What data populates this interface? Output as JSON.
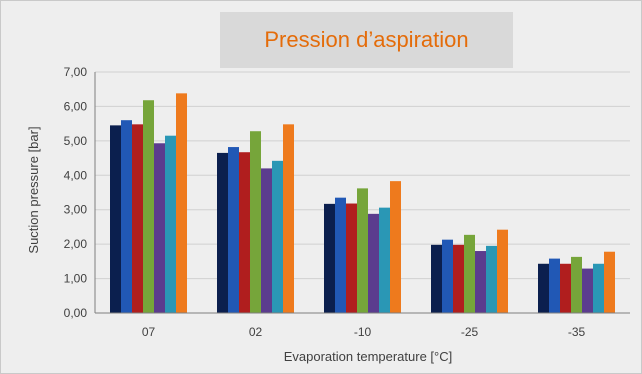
{
  "chart_data": {
    "type": "bar",
    "title": "Pression d’aspiration",
    "xlabel": "Evaporation temperature [°C]",
    "ylabel": "Suction pressure [bar]",
    "ylim": [
      0,
      7
    ],
    "yticks": [
      "0,00",
      "1,00",
      "2,00",
      "3,00",
      "4,00",
      "5,00",
      "6,00",
      "7,00"
    ],
    "categories": [
      "07",
      "02",
      "-10",
      "-25",
      "-35"
    ],
    "grid": true,
    "series": [
      {
        "color": "#0b1f4e",
        "values": [
          5.45,
          4.65,
          3.17,
          1.98,
          1.43
        ]
      },
      {
        "color": "#2158b5",
        "values": [
          5.6,
          4.82,
          3.35,
          2.13,
          1.58
        ]
      },
      {
        "color": "#b01e1e",
        "values": [
          5.48,
          4.67,
          3.18,
          1.98,
          1.43
        ]
      },
      {
        "color": "#76a53a",
        "values": [
          6.18,
          5.28,
          3.62,
          2.27,
          1.63
        ]
      },
      {
        "color": "#5b3c8e",
        "values": [
          4.93,
          4.2,
          2.88,
          1.8,
          1.29
        ]
      },
      {
        "color": "#2a97b5",
        "values": [
          5.15,
          4.42,
          3.06,
          1.95,
          1.43
        ]
      },
      {
        "color": "#ee7a1d",
        "values": [
          6.38,
          5.48,
          3.83,
          2.42,
          1.78
        ]
      }
    ]
  }
}
